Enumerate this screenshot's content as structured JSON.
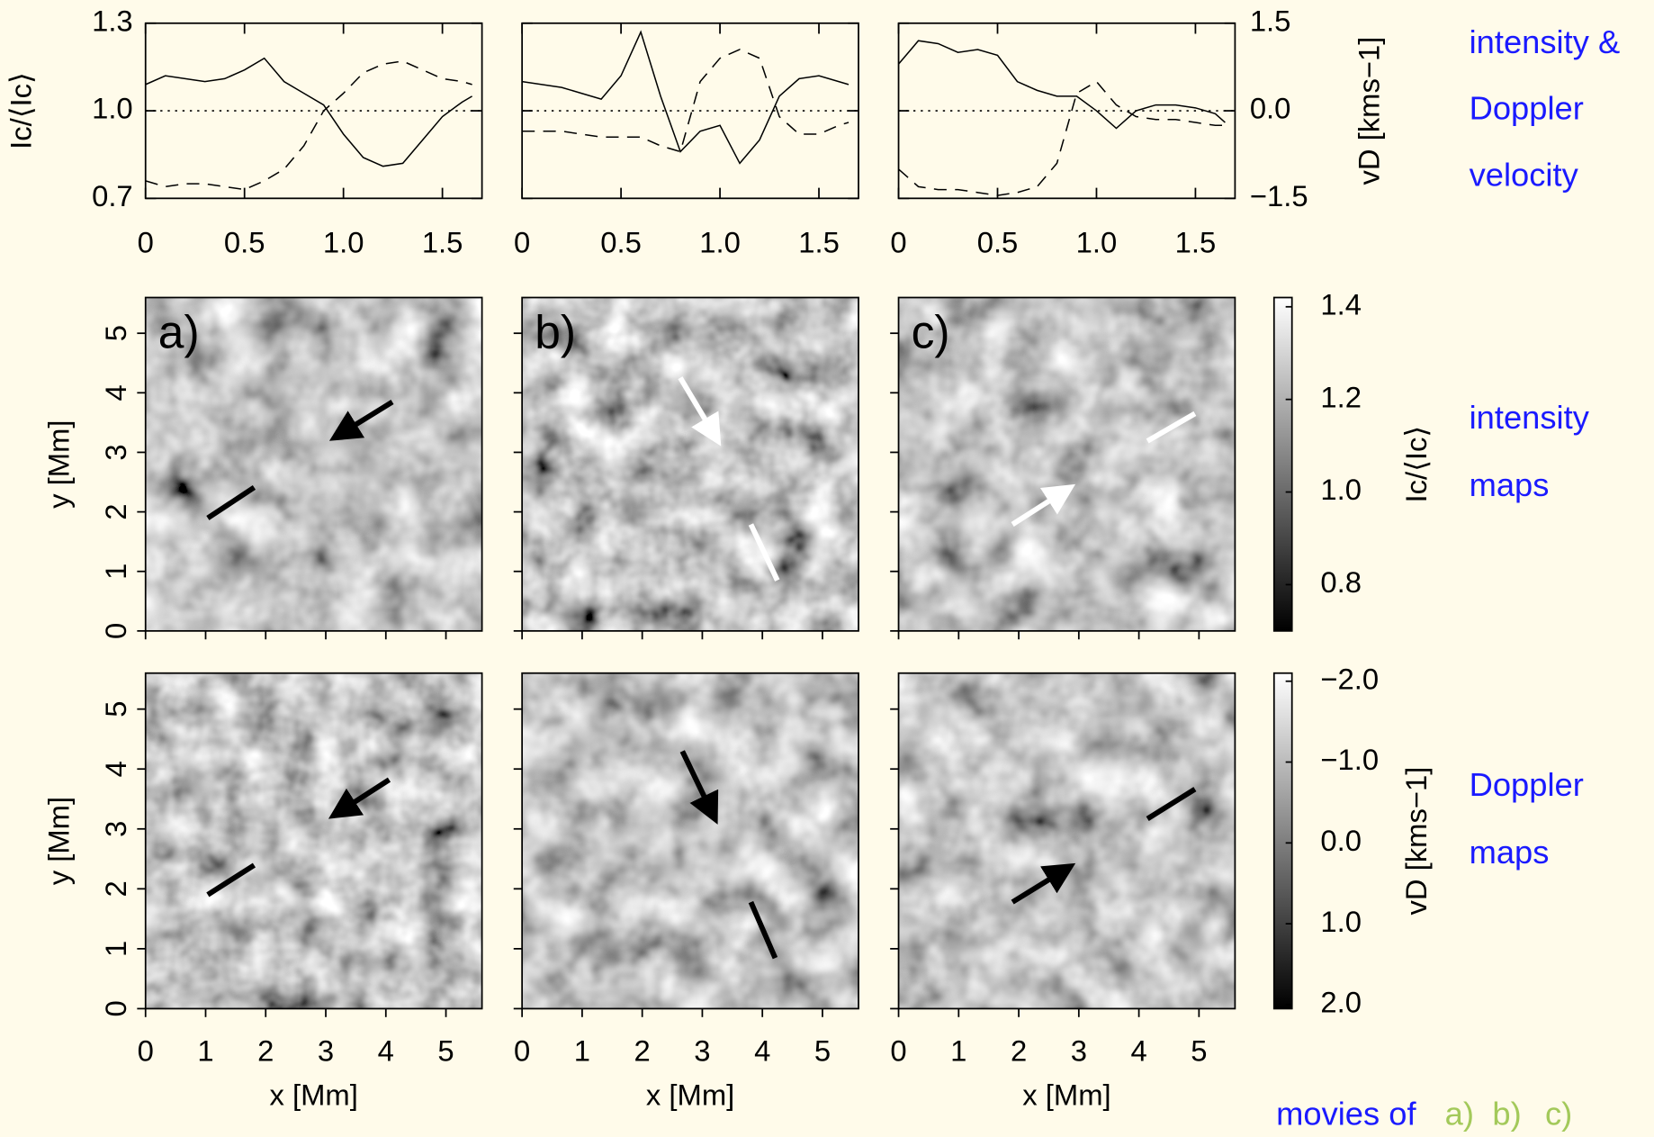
{
  "chart_data": [
    {
      "type": "line",
      "ylabel": "Ic/⟨Ic⟩",
      "y2label": "vD [kms−1]",
      "xlim": [
        0,
        1.7
      ],
      "xticks": [
        0,
        0.5,
        {
          "value": 1,
          "label": "1.0"
        },
        1.5
      ],
      "ylim": [
        0.7,
        1.3
      ],
      "yticks": [
        0.7,
        {
          "value": 1,
          "label": "1.0"
        },
        1.3
      ],
      "y2lim": [
        -1.5,
        1.5
      ],
      "y2ticks": [
        {
          "value": -1.5,
          "label": "−1.5"
        },
        {
          "value": 0,
          "label": "0.0"
        },
        1.5
      ],
      "zero_line": true,
      "panels": [
        {
          "x": [
            0,
            0.1,
            0.2,
            0.3,
            0.4,
            0.5,
            0.6,
            0.7,
            0.8,
            0.9,
            1.0,
            1.1,
            1.2,
            1.3,
            1.4,
            1.5,
            1.6,
            1.65
          ],
          "series": [
            {
              "color": "#000000",
              "dash": "solid",
              "values": [
                1.09,
                1.12,
                1.11,
                1.1,
                1.11,
                1.14,
                1.18,
                1.1,
                1.06,
                1.02,
                0.92,
                0.84,
                0.81,
                0.82,
                0.9,
                0.98,
                1.03,
                1.05
              ]
            },
            {
              "color": "#000000",
              "dash": "dashed",
              "axis": "y2",
              "values": [
                -1.2,
                -1.3,
                -1.25,
                -1.25,
                -1.3,
                -1.35,
                -1.2,
                -1.0,
                -0.6,
                0.0,
                0.3,
                0.65,
                0.8,
                0.85,
                0.7,
                0.55,
                0.5,
                0.45
              ]
            }
          ]
        },
        {
          "x": [
            0,
            0.1,
            0.2,
            0.3,
            0.4,
            0.5,
            0.6,
            0.7,
            0.8,
            0.9,
            1.0,
            1.1,
            1.2,
            1.3,
            1.4,
            1.5,
            1.6,
            1.65
          ],
          "series": [
            {
              "color": "#000000",
              "dash": "solid",
              "values": [
                1.1,
                1.09,
                1.08,
                1.06,
                1.04,
                1.12,
                1.27,
                1.05,
                0.86,
                0.93,
                0.95,
                0.82,
                0.9,
                1.05,
                1.11,
                1.12,
                1.1,
                1.09
              ]
            },
            {
              "color": "#000000",
              "dash": "dashed",
              "axis": "y2",
              "values": [
                -0.35,
                -0.35,
                -0.35,
                -0.4,
                -0.45,
                -0.45,
                -0.45,
                -0.6,
                -0.7,
                0.5,
                0.9,
                1.05,
                0.9,
                -0.1,
                -0.4,
                -0.4,
                -0.25,
                -0.2
              ]
            }
          ]
        },
        {
          "x": [
            0,
            0.1,
            0.2,
            0.3,
            0.4,
            0.5,
            0.6,
            0.7,
            0.8,
            0.9,
            1.0,
            1.1,
            1.2,
            1.3,
            1.4,
            1.5,
            1.6,
            1.65
          ],
          "series": [
            {
              "color": "#000000",
              "dash": "solid",
              "values": [
                1.16,
                1.24,
                1.23,
                1.2,
                1.21,
                1.19,
                1.1,
                1.07,
                1.05,
                1.05,
                1.0,
                0.94,
                1.0,
                1.02,
                1.02,
                1.01,
                0.99,
                0.96
              ]
            },
            {
              "color": "#000000",
              "dash": "dashed",
              "axis": "y2",
              "values": [
                -1.0,
                -1.3,
                -1.35,
                -1.35,
                -1.4,
                -1.45,
                -1.4,
                -1.3,
                -0.9,
                0.3,
                0.5,
                0.1,
                -0.1,
                -0.15,
                -0.15,
                -0.2,
                -0.25,
                -0.25
              ]
            }
          ]
        }
      ]
    },
    {
      "type": "image",
      "ylabel": "y [Mm]",
      "xlim": [
        0,
        5.6
      ],
      "ylim": [
        0,
        5.6
      ],
      "yticks": [
        0,
        1,
        2,
        3,
        4,
        5
      ],
      "panel_labels": [
        "a)",
        "b)",
        "c)"
      ],
      "colorbar": {
        "label": "Ic/⟨Ic⟩",
        "lim": [
          0.7,
          1.42
        ],
        "ticks": [
          0.8,
          {
            "value": 1,
            "label": "1.0"
          },
          1.2,
          1.4
        ]
      }
    },
    {
      "type": "image",
      "ylabel": "y [Mm]",
      "xlabel": "x [Mm]",
      "xlim": [
        0,
        5.6
      ],
      "ylim": [
        0,
        5.6
      ],
      "xticks": [
        0,
        1,
        2,
        3,
        4,
        5
      ],
      "yticks": [
        0,
        1,
        2,
        3,
        4,
        5
      ],
      "colorbar": {
        "label": "vD [kms−1]",
        "lim": [
          2.05,
          -2.1
        ],
        "ticks": [
          {
            "value": -2,
            "label": "−2.0"
          },
          {
            "value": -1,
            "label": "−1.0"
          },
          {
            "value": 0,
            "label": "0.0"
          },
          {
            "value": 1,
            "label": "1.0"
          },
          {
            "value": 2,
            "label": "2.0"
          }
        ]
      }
    }
  ],
  "side_labels": {
    "top": [
      "intensity &",
      "Doppler",
      "velocity"
    ],
    "middle": [
      "intensity",
      "maps"
    ],
    "bottom": [
      "Doppler",
      "maps"
    ],
    "movies": {
      "text": "movies of",
      "links": [
        "a)",
        "b)",
        "c)"
      ]
    }
  }
}
